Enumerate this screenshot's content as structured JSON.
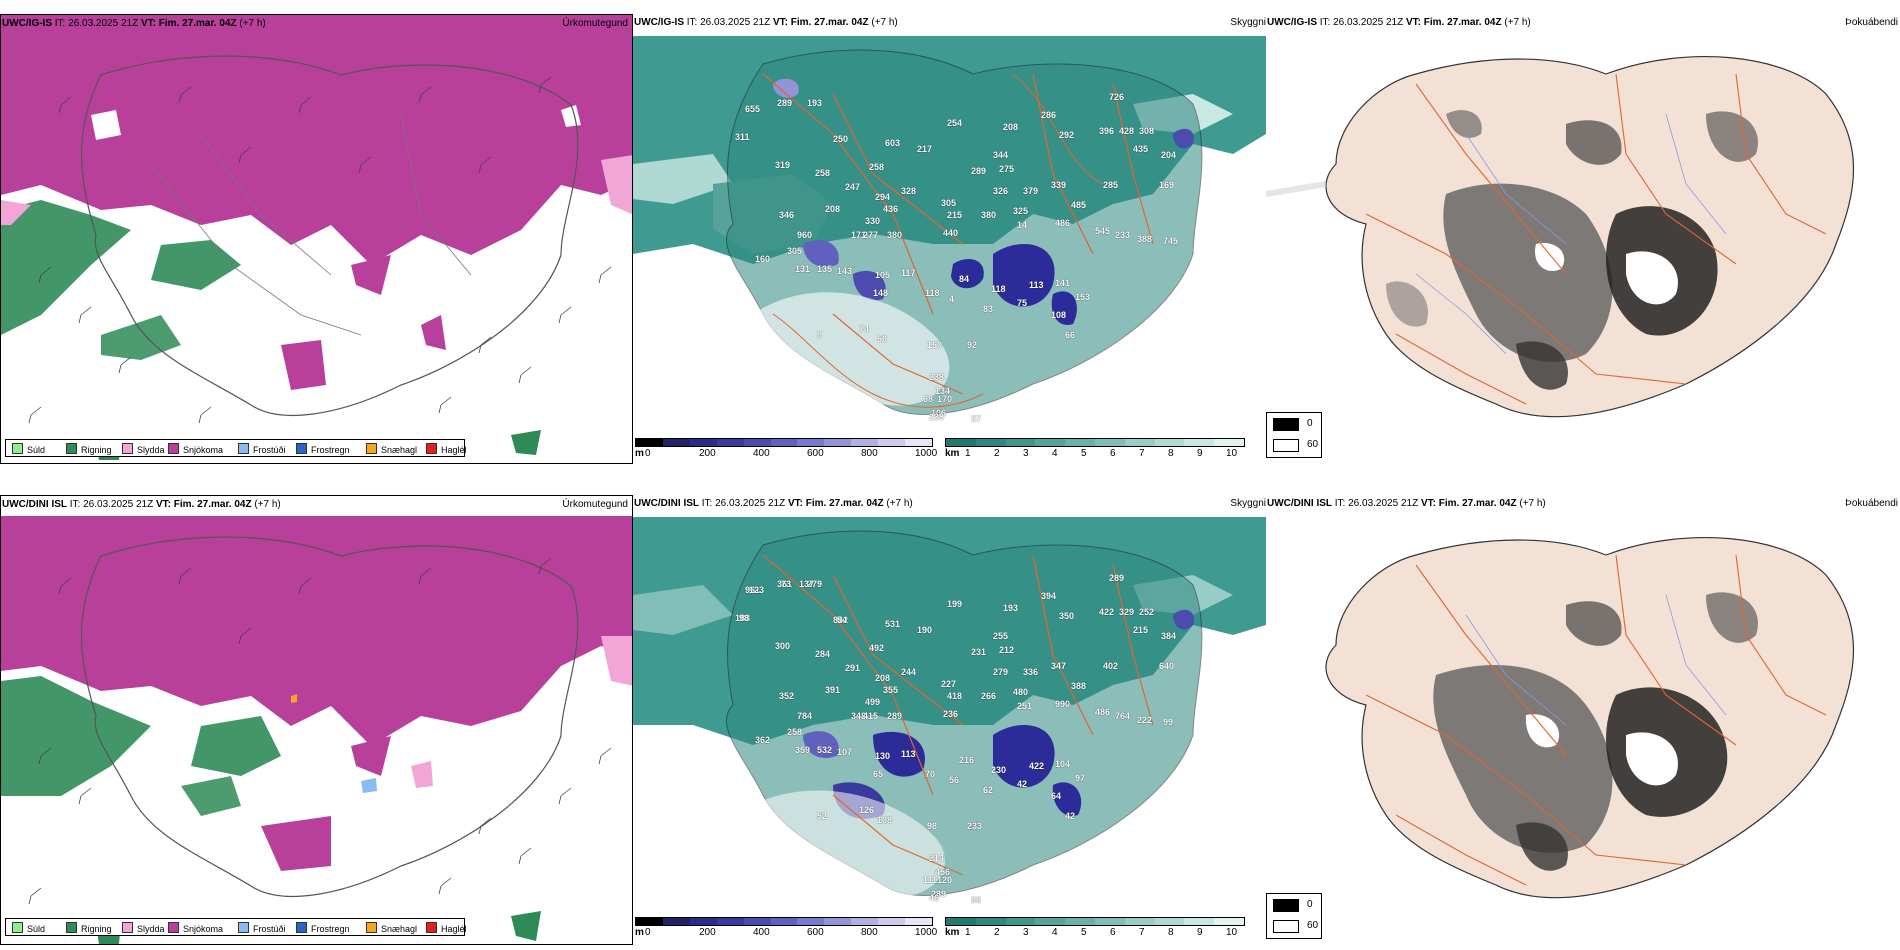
{
  "rows": [
    {
      "model": "UWC/IG-IS",
      "it_label": "IT:",
      "it_value": "26.03.2025 21Z",
      "vt_label": "VT:",
      "vt_value": "Fim. 27.mar. 04Z",
      "lead": "(+7 h)",
      "ceiling_labels": [
        "655",
        "289",
        "193",
        "311",
        "250",
        "603",
        "254",
        "208",
        "286",
        "292",
        "726",
        "396",
        "428",
        "308",
        "435",
        "204",
        "319",
        "258",
        "258",
        "217",
        "289",
        "344",
        "275",
        "339",
        "285",
        "169",
        "247",
        "294",
        "328",
        "305",
        "326",
        "379",
        "485",
        "215",
        "346",
        "208",
        "436",
        "330",
        "380",
        "325",
        "486",
        "545",
        "233",
        "960",
        "171",
        "277",
        "380",
        "440",
        "14",
        "388",
        "745",
        "305",
        "160",
        "131",
        "135",
        "143",
        "105",
        "117",
        "84",
        "118",
        "113",
        "141",
        "153",
        "148",
        "118",
        "4",
        "83",
        "75",
        "108",
        "66",
        "9",
        "74",
        "50",
        "150",
        "92",
        "238",
        "134",
        "106",
        "239",
        "170",
        "57",
        "68"
      ]
    },
    {
      "model": "UWC/DINI ISL",
      "it_label": "IT:",
      "it_value": "26.03.2025 21Z",
      "vt_label": "VT:",
      "vt_value": "Fim. 27.mar. 04Z",
      "lead": "(+7 h)",
      "ceiling_labels": [
        "961",
        "361",
        "279",
        "183",
        "842",
        "531",
        "199",
        "193",
        "394",
        "350",
        "289",
        "422",
        "329",
        "252",
        "215",
        "384",
        "300",
        "284",
        "492",
        "190",
        "231",
        "255",
        "212",
        "347",
        "402",
        "640",
        "291",
        "208",
        "244",
        "227",
        "279",
        "336",
        "388",
        "418",
        "352",
        "391",
        "355",
        "499",
        "266",
        "480",
        "990",
        "486",
        "764",
        "784",
        "348",
        "415",
        "289",
        "236",
        "251",
        "222",
        "99",
        "258",
        "362",
        "359",
        "532",
        "107",
        "130",
        "113",
        "216",
        "230",
        "422",
        "104",
        "97",
        "65",
        "70",
        "56",
        "62",
        "42",
        "64",
        "42",
        "52",
        "126",
        "108",
        "98",
        "233",
        "214",
        "456",
        "289",
        "46",
        "120",
        "96",
        "111",
        "123",
        "73",
        "137",
        "98",
        "54"
      ]
    }
  ],
  "panel_titles": {
    "precip_type": "Úrkomutegund",
    "cloud_base": "Skyggni",
    "fog": "Þokuábendi"
  },
  "precip_legend": [
    {
      "label": "Súld",
      "color": "#90ee90"
    },
    {
      "label": "Rigning",
      "color": "#2e8b57"
    },
    {
      "label": "Slydda",
      "color": "#f2a6d8"
    },
    {
      "label": "Snjókoma",
      "color": "#b8409b"
    },
    {
      "label": "Frostúði",
      "color": "#87bdf2"
    },
    {
      "label": "Frostregn",
      "color": "#2a64c8"
    },
    {
      "label": "Snæhagl",
      "color": "#f5a623"
    },
    {
      "label": "Haglél",
      "color": "#e0201e"
    }
  ],
  "ceiling_scale": {
    "unit": "m",
    "ticks": [
      "0",
      "200",
      "400",
      "600",
      "800",
      "1000"
    ],
    "colors": [
      "#000000",
      "#222266",
      "#2b2b8a",
      "#3a3a9e",
      "#4c4cb0",
      "#6060bf",
      "#7878cc",
      "#9393d8",
      "#b0b0e4",
      "#cccbee",
      "#e6e6f8"
    ]
  },
  "visibility_scale": {
    "unit": "km",
    "ticks": [
      "1",
      "2",
      "3",
      "4",
      "5",
      "6",
      "7",
      "8",
      "9",
      "10"
    ],
    "colors": [
      "#1f7a72",
      "#2e8880",
      "#40958d",
      "#55a39b",
      "#6ab1a9",
      "#80beb7",
      "#98ccc6",
      "#b0d9d4",
      "#c9e7e3",
      "#e3f3f1"
    ]
  },
  "fog_legend": [
    {
      "label": "0",
      "color": "#000000"
    },
    {
      "label": "60",
      "color": "#ffffff"
    }
  ],
  "colors": {
    "snow": "#b8409b",
    "rain": "#2e8b57",
    "sleet": "#f2a6d8",
    "sea_vis": "#3f9a92",
    "ceiling_low": "#2b2b9a",
    "road": "#e2662c"
  }
}
